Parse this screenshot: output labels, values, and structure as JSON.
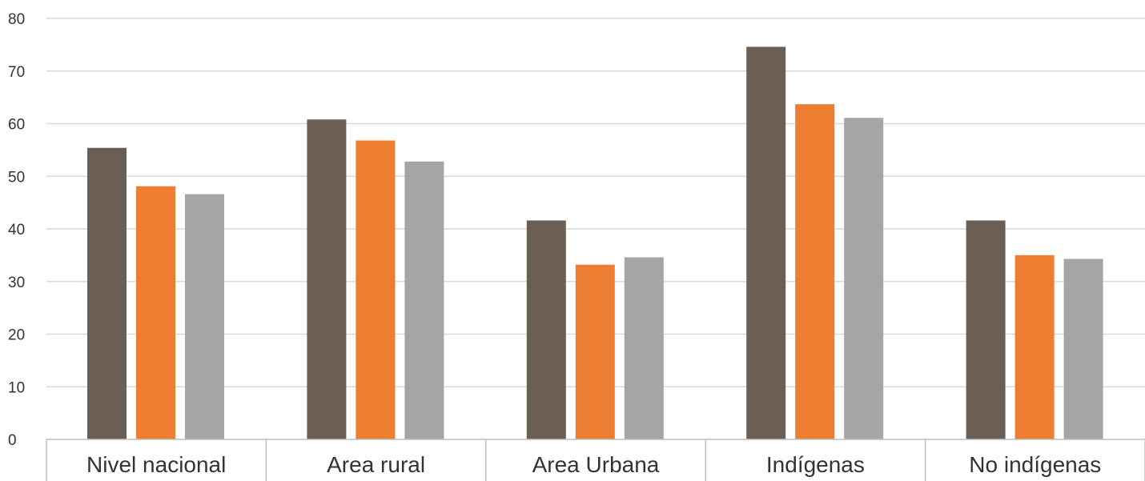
{
  "chart_data": {
    "type": "bar",
    "title": "",
    "xlabel": "",
    "ylabel": "",
    "ylim": [
      0,
      80
    ],
    "y_ticks": [
      0,
      10,
      20,
      30,
      40,
      50,
      60,
      70,
      80
    ],
    "grid": true,
    "legend": "none",
    "categories": [
      "Nivel nacional",
      "Area rural",
      "Area Urbana",
      "Indígenas",
      "No indígenas"
    ],
    "series": [
      {
        "values": [
          55.4,
          60.8,
          41.6,
          74.6,
          41.6
        ],
        "color": "#6b5e52"
      },
      {
        "values": [
          48.1,
          56.8,
          33.2,
          63.7,
          35.0
        ],
        "color": "#ed7d31"
      },
      {
        "values": [
          46.6,
          52.8,
          34.6,
          61.1,
          34.3
        ],
        "color": "#a5a5a5"
      }
    ]
  }
}
